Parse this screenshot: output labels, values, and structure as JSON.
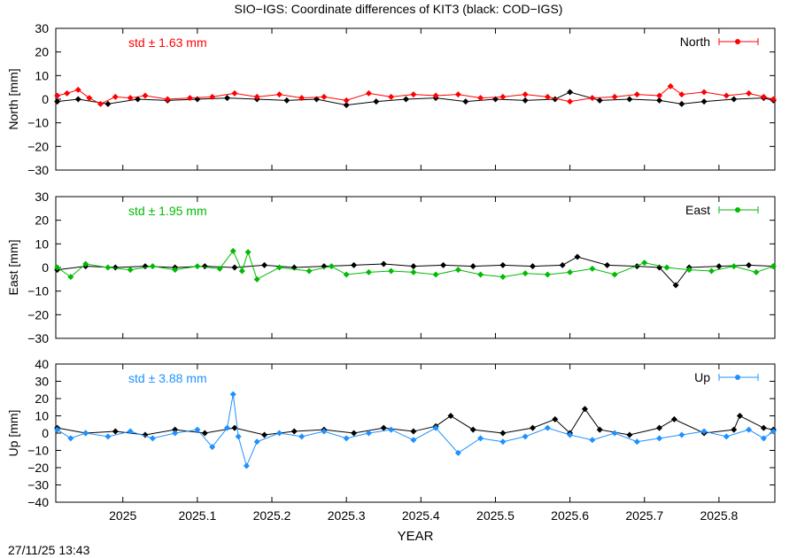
{
  "title": "SIO−IGS: Coordinate differences of KIT3 (black: COD−IGS)",
  "footer_timestamp": "27/11/25 13:43",
  "chart_data": {
    "type": "scatter",
    "xlabel": "YEAR",
    "xlim": [
      2024.91,
      2025.875
    ],
    "xticks": [
      "2025",
      "2025.1",
      "2025.2",
      "2025.3",
      "2025.4",
      "2025.5",
      "2025.6",
      "2025.7",
      "2025.8"
    ],
    "reference_series_note": "black: COD−IGS",
    "panels": [
      {
        "name": "North",
        "ylabel": "North [mm]",
        "ylim": [
          -30,
          30
        ],
        "yticks": [
          "30",
          "20",
          "10",
          "0",
          "−10",
          "−20",
          "−30"
        ],
        "std_label": "std ± 1.63 mm",
        "color": "#ff0000",
        "series": [
          {
            "name": "North",
            "x": [
              2024.912,
              2024.925,
              2024.94,
              2024.955,
              2024.97,
              2024.99,
              2025.01,
              2025.03,
              2025.06,
              2025.09,
              2025.12,
              2025.15,
              2025.18,
              2025.21,
              2025.24,
              2025.27,
              2025.3,
              2025.33,
              2025.36,
              2025.39,
              2025.42,
              2025.45,
              2025.48,
              2025.51,
              2025.54,
              2025.57,
              2025.6,
              2025.63,
              2025.66,
              2025.69,
              2025.72,
              2025.735,
              2025.75,
              2025.78,
              2025.81,
              2025.84,
              2025.86,
              2025.873
            ],
            "values": [
              1.5,
              2.5,
              4,
              0.5,
              -2,
              1,
              0.5,
              1.5,
              0,
              0.5,
              1,
              2.5,
              1,
              2,
              0.5,
              1,
              -0.5,
              2.5,
              1,
              2,
              1.5,
              2,
              0.5,
              1,
              2,
              1,
              -1,
              0.5,
              1,
              2,
              1.5,
              5.5,
              2,
              3,
              1.5,
              2.5,
              1,
              0
            ]
          },
          {
            "name": "COD−IGS",
            "x": [
              2024.912,
              2024.94,
              2024.98,
              2025.02,
              2025.06,
              2025.1,
              2025.14,
              2025.18,
              2025.22,
              2025.26,
              2025.3,
              2025.34,
              2025.38,
              2025.42,
              2025.46,
              2025.5,
              2025.54,
              2025.58,
              2025.6,
              2025.64,
              2025.68,
              2025.72,
              2025.75,
              2025.78,
              2025.82,
              2025.86,
              2025.873
            ],
            "values": [
              -1,
              0,
              -2,
              0,
              -0.5,
              0,
              0.5,
              0,
              -0.5,
              0,
              -2.5,
              -1,
              0,
              0.5,
              -1,
              0,
              -0.5,
              0,
              3,
              -0.5,
              0,
              -0.5,
              -2,
              -1,
              0,
              0.5,
              -0.5
            ]
          }
        ]
      },
      {
        "name": "East",
        "ylabel": "East [mm]",
        "ylim": [
          -30,
          30
        ],
        "yticks": [
          "30",
          "20",
          "10",
          "0",
          "−10",
          "−20",
          "−30"
        ],
        "std_label": "std ± 1.95 mm",
        "color": "#00bb00",
        "series": [
          {
            "name": "East",
            "x": [
              2024.912,
              2024.93,
              2024.95,
              2024.98,
              2025.01,
              2025.04,
              2025.07,
              2025.1,
              2025.13,
              2025.148,
              2025.16,
              2025.168,
              2025.18,
              2025.21,
              2025.25,
              2025.28,
              2025.3,
              2025.33,
              2025.36,
              2025.39,
              2025.42,
              2025.45,
              2025.48,
              2025.51,
              2025.54,
              2025.57,
              2025.6,
              2025.63,
              2025.66,
              2025.7,
              2025.73,
              2025.76,
              2025.79,
              2025.82,
              2025.85,
              2025.873
            ],
            "values": [
              0,
              -4,
              1.5,
              0,
              -1,
              0.5,
              -1,
              0.5,
              -0.5,
              7,
              -1.5,
              6.5,
              -5,
              0,
              -1.5,
              0.5,
              -3,
              -2,
              -1.5,
              -2,
              -3,
              -1,
              -3,
              -4,
              -2.5,
              -3,
              -2,
              -0.5,
              -3,
              2,
              0,
              -1,
              -1.5,
              0.5,
              -2,
              0.5
            ]
          },
          {
            "name": "COD−IGS",
            "x": [
              2024.912,
              2024.95,
              2024.99,
              2025.03,
              2025.07,
              2025.11,
              2025.15,
              2025.19,
              2025.23,
              2025.27,
              2025.31,
              2025.35,
              2025.39,
              2025.43,
              2025.47,
              2025.51,
              2025.55,
              2025.59,
              2025.61,
              2025.65,
              2025.69,
              2025.72,
              2025.742,
              2025.76,
              2025.8,
              2025.84,
              2025.873
            ],
            "values": [
              -1,
              0.5,
              0,
              0.5,
              0,
              0.5,
              0,
              1,
              0,
              0.5,
              1,
              1.5,
              0.5,
              1,
              0.5,
              1,
              0.5,
              1,
              4.5,
              1,
              0.5,
              0,
              -7.5,
              0,
              0.5,
              1,
              0.5
            ]
          }
        ]
      },
      {
        "name": "Up",
        "ylabel": "Up [mm]",
        "ylim": [
          -40,
          40
        ],
        "yticks": [
          "40",
          "30",
          "20",
          "10",
          "0",
          "−10",
          "−20",
          "−30",
          "−40"
        ],
        "std_label": "std ± 3.88 mm",
        "color": "#1e90ff",
        "series": [
          {
            "name": "Up",
            "x": [
              2024.912,
              2024.93,
              2024.95,
              2024.98,
              2025.01,
              2025.04,
              2025.07,
              2025.1,
              2025.12,
              2025.14,
              2025.148,
              2025.155,
              2025.166,
              2025.18,
              2025.21,
              2025.24,
              2025.27,
              2025.3,
              2025.33,
              2025.36,
              2025.39,
              2025.42,
              2025.45,
              2025.48,
              2025.51,
              2025.54,
              2025.57,
              2025.6,
              2025.63,
              2025.66,
              2025.69,
              2025.72,
              2025.75,
              2025.78,
              2025.81,
              2025.84,
              2025.86,
              2025.873
            ],
            "values": [
              2,
              -3,
              0,
              -2,
              1,
              -3,
              0,
              2,
              -8,
              3,
              22.5,
              -2,
              -19,
              -5,
              0,
              -2,
              1,
              -3,
              0,
              2,
              -4,
              3,
              -11.5,
              -3,
              -5,
              -2,
              3,
              -1,
              -4,
              0,
              -5,
              -3,
              -1,
              1,
              -2,
              2,
              -3,
              1
            ]
          },
          {
            "name": "COD−IGS",
            "x": [
              2024.912,
              2024.95,
              2024.99,
              2025.03,
              2025.07,
              2025.11,
              2025.15,
              2025.19,
              2025.23,
              2025.27,
              2025.31,
              2025.35,
              2025.39,
              2025.42,
              2025.44,
              2025.47,
              2025.51,
              2025.55,
              2025.58,
              2025.6,
              2025.62,
              2025.64,
              2025.68,
              2025.72,
              2025.74,
              2025.78,
              2025.82,
              2025.828,
              2025.86,
              2025.873
            ],
            "values": [
              3,
              0,
              1,
              -1,
              2,
              0,
              3,
              -1,
              1,
              2,
              0,
              3,
              1,
              4,
              10,
              2,
              0,
              3,
              8,
              0,
              14,
              2,
              -1,
              3,
              8,
              0,
              2,
              10,
              3,
              2
            ]
          }
        ]
      }
    ]
  }
}
